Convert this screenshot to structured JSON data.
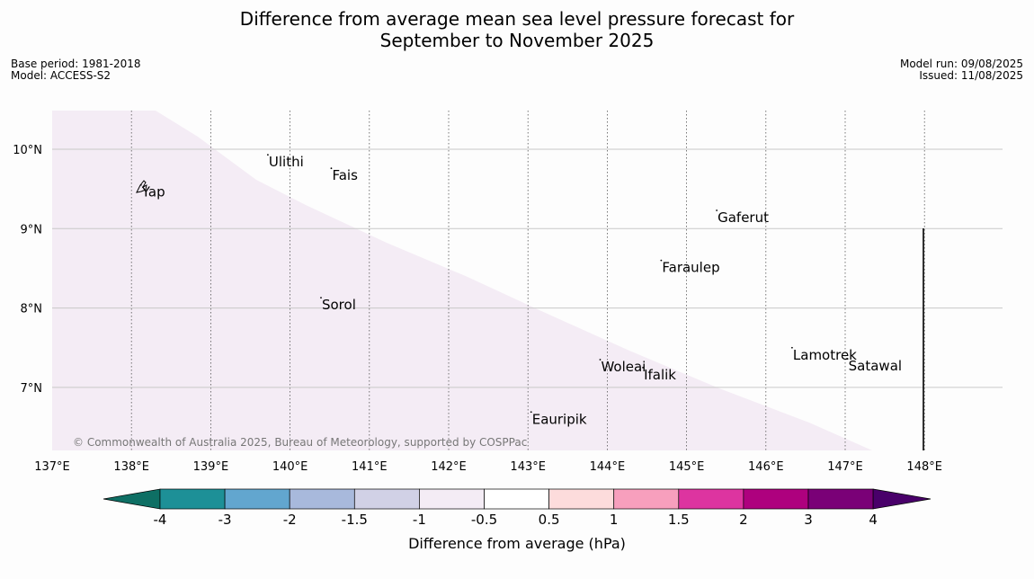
{
  "title_line1": "Difference from average mean sea level pressure forecast for",
  "title_line2": "September to November 2025",
  "base_period": "Base period: 1981-2018",
  "model": "Model: ACCESS-S2",
  "model_run": "Model run: 09/08/2025",
  "issued": "Issued: 11/08/2025",
  "copyright": "© Commonwealth of Australia 2025, Bureau of Meteorology, supported by COSPPac",
  "map": {
    "lon_ticks": [
      "137°E",
      "138°E",
      "139°E",
      "140°E",
      "141°E",
      "142°E",
      "143°E",
      "144°E",
      "145°E",
      "146°E",
      "147°E",
      "148°E"
    ],
    "lat_ticks": [
      "10°N",
      "9°N",
      "8°N",
      "7°N"
    ],
    "places": [
      {
        "name": "Ulithi",
        "lon": 139.72,
        "lat": 9.93
      },
      {
        "name": "Fais",
        "lon": 140.52,
        "lat": 9.76
      },
      {
        "name": "Yap",
        "lon": 138.12,
        "lat": 9.55
      },
      {
        "name": "Gaferut",
        "lon": 145.38,
        "lat": 9.23
      },
      {
        "name": "Faraulep",
        "lon": 144.68,
        "lat": 8.6
      },
      {
        "name": "Sorol",
        "lon": 140.39,
        "lat": 8.13
      },
      {
        "name": "Woleai",
        "lon": 143.91,
        "lat": 7.35
      },
      {
        "name": "Ifalik",
        "lon": 144.45,
        "lat": 7.25
      },
      {
        "name": "Lamotrek",
        "lon": 146.33,
        "lat": 7.5
      },
      {
        "name": "Satawal",
        "lon": 147.03,
        "lat": 7.36
      },
      {
        "name": "Eauripik",
        "lon": 143.04,
        "lat": 6.69
      }
    ],
    "shading_value_range": "-1 to -0.5",
    "shading_color": "#f4ecf5"
  },
  "colorbar": {
    "label": "Difference from average (hPa)",
    "tick_labels": [
      "-4",
      "-3",
      "-2",
      "-1.5",
      "-1",
      "-0.5",
      "0.5",
      "1",
      "1.5",
      "2",
      "3",
      "4"
    ],
    "colors": [
      "#0e6f64",
      "#1d9097",
      "#62a6cf",
      "#a8b9dc",
      "#d1d1e6",
      "#f4ecf5",
      "#ffffff",
      "#fddcdc",
      "#f79fbd",
      "#dd34a0",
      "#ae017e",
      "#7a0177",
      "#49006a"
    ]
  }
}
